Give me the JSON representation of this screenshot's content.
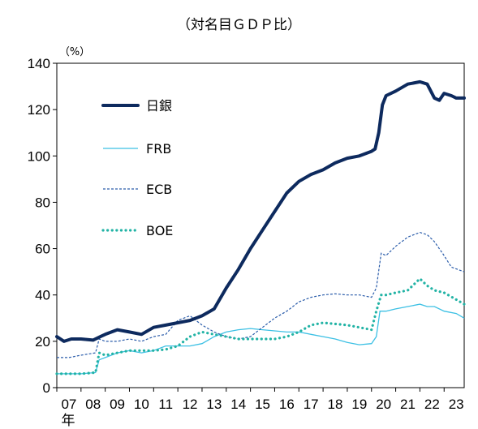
{
  "chart_data": {
    "type": "line",
    "title": "（対名目ＧＤＰ比）",
    "ylabel": "（%）",
    "x_suffix": "年",
    "ylim": [
      0,
      140
    ],
    "yticks": [
      0,
      20,
      40,
      60,
      80,
      100,
      120,
      140
    ],
    "xlim": [
      2007.0,
      2023.83
    ],
    "xticks": [
      {
        "x": 2007,
        "label": "07"
      },
      {
        "x": 2008,
        "label": "08"
      },
      {
        "x": 2009,
        "label": "09"
      },
      {
        "x": 2010,
        "label": "10"
      },
      {
        "x": 2011,
        "label": "11"
      },
      {
        "x": 2012,
        "label": "12"
      },
      {
        "x": 2013,
        "label": "13"
      },
      {
        "x": 2014,
        "label": "14"
      },
      {
        "x": 2015,
        "label": "15"
      },
      {
        "x": 2016,
        "label": "16"
      },
      {
        "x": 2017,
        "label": "17"
      },
      {
        "x": 2018,
        "label": "18"
      },
      {
        "x": 2019,
        "label": "19"
      },
      {
        "x": 2020,
        "label": "20"
      },
      {
        "x": 2021,
        "label": "21"
      },
      {
        "x": 2022,
        "label": "22"
      },
      {
        "x": 2023,
        "label": "23"
      }
    ],
    "series": [
      {
        "name": "日銀",
        "color": "#0d2a5e",
        "style": "thick",
        "points": [
          [
            2007.0,
            22
          ],
          [
            2007.3,
            20
          ],
          [
            2007.6,
            21
          ],
          [
            2008.0,
            21
          ],
          [
            2008.5,
            20.5
          ],
          [
            2008.8,
            22
          ],
          [
            2009.0,
            23
          ],
          [
            2009.5,
            25
          ],
          [
            2010.0,
            24
          ],
          [
            2010.5,
            23
          ],
          [
            2011.0,
            26
          ],
          [
            2011.5,
            27
          ],
          [
            2012.0,
            28
          ],
          [
            2012.5,
            29
          ],
          [
            2013.0,
            31
          ],
          [
            2013.5,
            34
          ],
          [
            2014.0,
            43
          ],
          [
            2014.5,
            51
          ],
          [
            2015.0,
            60
          ],
          [
            2015.5,
            68
          ],
          [
            2016.0,
            76
          ],
          [
            2016.5,
            84
          ],
          [
            2017.0,
            89
          ],
          [
            2017.5,
            92
          ],
          [
            2018.0,
            94
          ],
          [
            2018.5,
            97
          ],
          [
            2019.0,
            99
          ],
          [
            2019.5,
            100
          ],
          [
            2020.0,
            102
          ],
          [
            2020.15,
            103
          ],
          [
            2020.3,
            110
          ],
          [
            2020.45,
            122
          ],
          [
            2020.6,
            126
          ],
          [
            2021.0,
            128
          ],
          [
            2021.5,
            131
          ],
          [
            2022.0,
            132
          ],
          [
            2022.3,
            131
          ],
          [
            2022.6,
            125
          ],
          [
            2022.8,
            124
          ],
          [
            2023.0,
            127
          ],
          [
            2023.3,
            126
          ],
          [
            2023.5,
            125
          ],
          [
            2023.83,
            125
          ]
        ]
      },
      {
        "name": "FRB",
        "color": "#3cc0e4",
        "style": "thin",
        "points": [
          [
            2007.0,
            6
          ],
          [
            2007.5,
            6
          ],
          [
            2008.0,
            6
          ],
          [
            2008.6,
            6.5
          ],
          [
            2008.75,
            12
          ],
          [
            2009.0,
            13
          ],
          [
            2009.5,
            15
          ],
          [
            2010.0,
            16
          ],
          [
            2010.5,
            15
          ],
          [
            2011.0,
            16
          ],
          [
            2011.5,
            18
          ],
          [
            2012.0,
            18
          ],
          [
            2012.5,
            18
          ],
          [
            2013.0,
            19
          ],
          [
            2013.5,
            22
          ],
          [
            2014.0,
            24
          ],
          [
            2014.5,
            25
          ],
          [
            2015.0,
            25.5
          ],
          [
            2015.5,
            25
          ],
          [
            2016.0,
            24.5
          ],
          [
            2016.5,
            24
          ],
          [
            2017.0,
            24
          ],
          [
            2017.5,
            23
          ],
          [
            2018.0,
            22
          ],
          [
            2018.5,
            21
          ],
          [
            2019.0,
            19.5
          ],
          [
            2019.5,
            18.5
          ],
          [
            2020.0,
            19
          ],
          [
            2020.2,
            22
          ],
          [
            2020.35,
            33
          ],
          [
            2020.6,
            33
          ],
          [
            2021.0,
            34
          ],
          [
            2021.5,
            35
          ],
          [
            2022.0,
            36
          ],
          [
            2022.3,
            35
          ],
          [
            2022.6,
            35
          ],
          [
            2023.0,
            33
          ],
          [
            2023.5,
            32
          ],
          [
            2023.83,
            30
          ]
        ]
      },
      {
        "name": "ECB",
        "color": "#2a5caa",
        "style": "dashed",
        "points": [
          [
            2007.0,
            13
          ],
          [
            2007.5,
            13
          ],
          [
            2008.0,
            14
          ],
          [
            2008.6,
            15
          ],
          [
            2008.75,
            21
          ],
          [
            2009.0,
            20
          ],
          [
            2009.5,
            20
          ],
          [
            2010.0,
            21
          ],
          [
            2010.5,
            20
          ],
          [
            2011.0,
            22
          ],
          [
            2011.5,
            23
          ],
          [
            2012.0,
            29
          ],
          [
            2012.5,
            31
          ],
          [
            2013.0,
            27
          ],
          [
            2013.5,
            24
          ],
          [
            2014.0,
            22
          ],
          [
            2014.5,
            21
          ],
          [
            2015.0,
            22
          ],
          [
            2015.5,
            26
          ],
          [
            2016.0,
            30
          ],
          [
            2016.5,
            33
          ],
          [
            2017.0,
            37
          ],
          [
            2017.5,
            39
          ],
          [
            2018.0,
            40
          ],
          [
            2018.5,
            40.5
          ],
          [
            2019.0,
            40
          ],
          [
            2019.5,
            40
          ],
          [
            2020.0,
            39
          ],
          [
            2020.2,
            43
          ],
          [
            2020.4,
            58
          ],
          [
            2020.6,
            57
          ],
          [
            2021.0,
            61
          ],
          [
            2021.5,
            65
          ],
          [
            2022.0,
            67
          ],
          [
            2022.3,
            66
          ],
          [
            2022.6,
            63
          ],
          [
            2023.0,
            57
          ],
          [
            2023.3,
            52
          ],
          [
            2023.83,
            50
          ]
        ]
      },
      {
        "name": "BOE",
        "color": "#22b3a5",
        "style": "dotted",
        "points": [
          [
            2007.0,
            6
          ],
          [
            2007.5,
            6
          ],
          [
            2008.0,
            6
          ],
          [
            2008.6,
            6.5
          ],
          [
            2008.75,
            15
          ],
          [
            2009.0,
            14
          ],
          [
            2009.5,
            15
          ],
          [
            2010.0,
            16
          ],
          [
            2010.5,
            16
          ],
          [
            2011.0,
            16
          ],
          [
            2011.5,
            16.5
          ],
          [
            2012.0,
            18
          ],
          [
            2012.5,
            22
          ],
          [
            2013.0,
            24
          ],
          [
            2013.5,
            23
          ],
          [
            2014.0,
            22
          ],
          [
            2014.5,
            21
          ],
          [
            2015.0,
            21
          ],
          [
            2015.5,
            21
          ],
          [
            2016.0,
            21
          ],
          [
            2016.5,
            22
          ],
          [
            2017.0,
            24
          ],
          [
            2017.5,
            27
          ],
          [
            2018.0,
            28
          ],
          [
            2018.5,
            27.5
          ],
          [
            2019.0,
            27
          ],
          [
            2019.5,
            26
          ],
          [
            2020.0,
            25
          ],
          [
            2020.2,
            33
          ],
          [
            2020.4,
            40
          ],
          [
            2020.6,
            40
          ],
          [
            2021.0,
            41
          ],
          [
            2021.5,
            42
          ],
          [
            2022.0,
            47
          ],
          [
            2022.3,
            44
          ],
          [
            2022.6,
            42
          ],
          [
            2023.0,
            41
          ],
          [
            2023.5,
            38
          ],
          [
            2023.83,
            36
          ]
        ]
      }
    ]
  }
}
